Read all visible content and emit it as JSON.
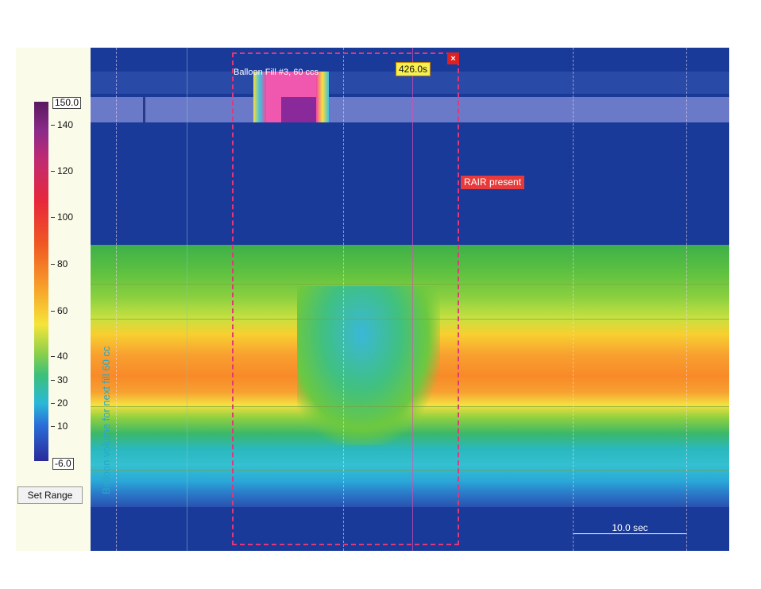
{
  "color_scale": {
    "max_value": "150.0",
    "min_value": "-6.0",
    "ticks": [
      "140",
      "120",
      "100",
      "80",
      "60",
      "40",
      "30",
      "20",
      "10"
    ]
  },
  "buttons": {
    "set_range": "Set Range"
  },
  "plot": {
    "balloon_label": "Balloon Fill #3, 60 ccs",
    "time_marker": "426.0s",
    "event_label": "RAIR present",
    "vertical_note": "Balloon volume for next fill 60 cc",
    "scale_label": "10.0 sec",
    "close_symbol": "×"
  },
  "colors": {
    "plot_background": "#1a3a9a",
    "selection_border": "#e0387a",
    "event_tag": "#e83a3a",
    "time_tag": "#f8f050"
  }
}
